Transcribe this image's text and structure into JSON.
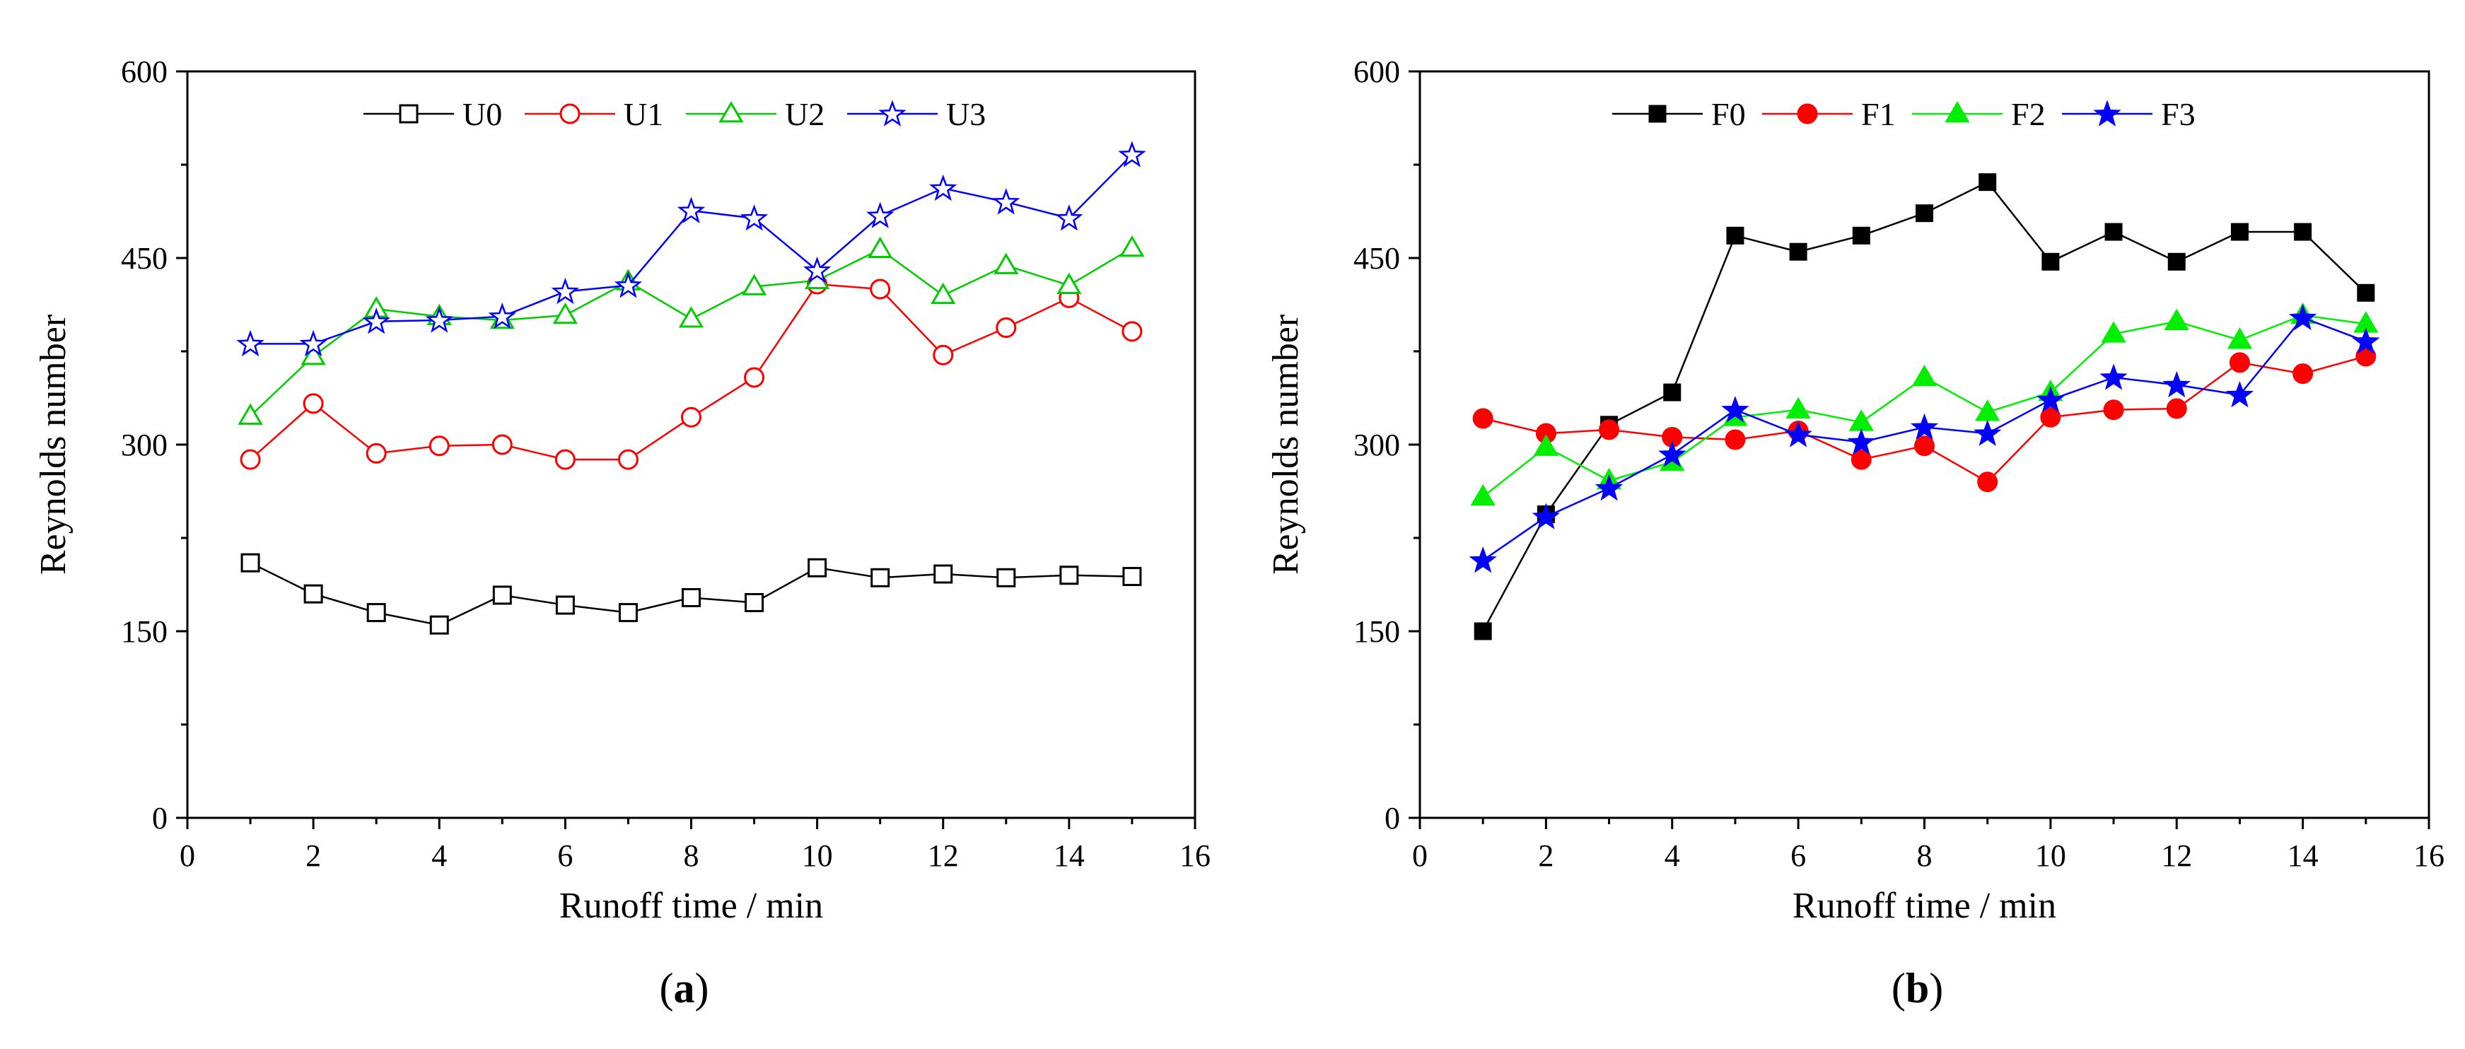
{
  "chart_data": [
    {
      "type": "line",
      "panel_label": "(a)",
      "panel_letter": "a",
      "xlabel": "Runoff time / min",
      "ylabel": "Reynolds number",
      "xlim": [
        0,
        16
      ],
      "ylim": [
        0,
        600
      ],
      "xticks": [
        0,
        2,
        4,
        6,
        8,
        10,
        12,
        14,
        16
      ],
      "yticks": [
        0,
        150,
        300,
        450,
        600
      ],
      "x": [
        1,
        2,
        3,
        4,
        5,
        6,
        7,
        8,
        9,
        10,
        11,
        12,
        13,
        14,
        15
      ],
      "legend_position": "top",
      "series": [
        {
          "name": "U0",
          "color": "#000000",
          "marker": "square",
          "filled": false,
          "values": [
            205,
            180,
            165,
            155,
            179,
            171,
            165,
            177,
            173,
            201,
            193,
            196,
            193,
            195,
            194
          ]
        },
        {
          "name": "U1",
          "color": "#ff0000",
          "marker": "circle",
          "filled": false,
          "values": [
            288,
            333,
            293,
            299,
            300,
            288,
            288,
            322,
            354,
            429,
            425,
            372,
            394,
            418,
            391
          ]
        },
        {
          "name": "U2",
          "color": "#00cc00",
          "marker": "triangle",
          "filled": false,
          "values": [
            323,
            371,
            409,
            403,
            400,
            404,
            431,
            401,
            427,
            432,
            457,
            420,
            444,
            428,
            458
          ]
        },
        {
          "name": "U3",
          "color": "#0000ff",
          "marker": "star",
          "filled": false,
          "values": [
            381,
            381,
            399,
            400,
            403,
            423,
            428,
            488,
            482,
            440,
            484,
            506,
            495,
            482,
            533
          ]
        }
      ]
    },
    {
      "type": "line",
      "panel_label": "(b)",
      "panel_letter": "b",
      "xlabel": "Runoff time / min",
      "ylabel": "Reynolds number",
      "xlim": [
        0,
        16
      ],
      "ylim": [
        0,
        600
      ],
      "xticks": [
        0,
        2,
        4,
        6,
        8,
        10,
        12,
        14,
        16
      ],
      "yticks": [
        0,
        150,
        300,
        450,
        600
      ],
      "x": [
        1,
        2,
        3,
        4,
        5,
        6,
        7,
        8,
        9,
        10,
        11,
        12,
        13,
        14,
        15
      ],
      "legend_position": "top",
      "series": [
        {
          "name": "F0",
          "color": "#000000",
          "marker": "square",
          "filled": true,
          "values": [
            150,
            244,
            316,
            342,
            468,
            455,
            468,
            486,
            511,
            447,
            471,
            447,
            471,
            471,
            422
          ]
        },
        {
          "name": "F1",
          "color": "#ff0000",
          "marker": "circle",
          "filled": true,
          "values": [
            321,
            309,
            312,
            306,
            304,
            311,
            288,
            299,
            270,
            322,
            328,
            329,
            366,
            357,
            371
          ]
        },
        {
          "name": "F2",
          "color": "#00ee00",
          "marker": "triangle",
          "filled": true,
          "values": [
            258,
            298,
            271,
            286,
            322,
            328,
            318,
            354,
            326,
            342,
            389,
            399,
            384,
            404,
            397
          ]
        },
        {
          "name": "F3",
          "color": "#0000ff",
          "marker": "star",
          "filled": true,
          "values": [
            207,
            242,
            265,
            292,
            328,
            308,
            302,
            314,
            309,
            336,
            354,
            348,
            340,
            402,
            383
          ]
        }
      ]
    }
  ]
}
